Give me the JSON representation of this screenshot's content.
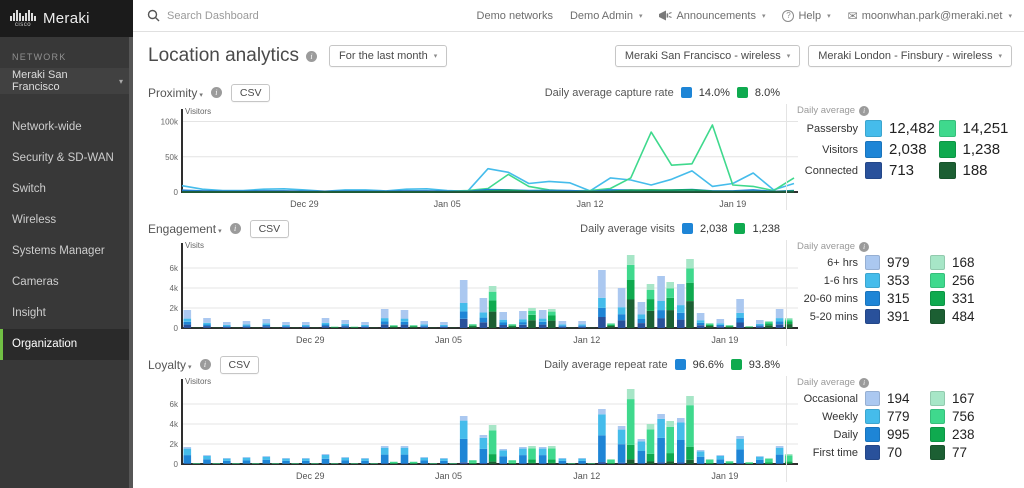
{
  "sidebar": {
    "brand": "cisco",
    "logo_text": "Meraki",
    "network_label": "NETWORK",
    "network_selector": "Meraki San Francisco",
    "items": [
      {
        "label": "Network-wide",
        "active": false
      },
      {
        "label": "Security & SD-WAN",
        "active": false
      },
      {
        "label": "Switch",
        "active": false
      },
      {
        "label": "Wireless",
        "active": false
      },
      {
        "label": "Systems Manager",
        "active": false
      },
      {
        "label": "Cameras",
        "active": false
      },
      {
        "label": "Insight",
        "active": false
      },
      {
        "label": "Organization",
        "active": true
      }
    ]
  },
  "topbar": {
    "search_placeholder": "Search Dashboard",
    "links": [
      "Demo networks",
      "Demo Admin",
      "Announcements",
      "Help",
      "moonwhan.park@meraki.net"
    ]
  },
  "header": {
    "title": "Location analytics",
    "time_filter": "For the last month",
    "network_a": "Meraki San Francisco - wireless",
    "network_b": "Meraki London - Finsbury - wireless"
  },
  "colors": {
    "blue_pale": "#ABC8F0",
    "blue_light": "#45BCEB",
    "blue_med": "#1E85D6",
    "blue_dark": "#29519B",
    "green_pale": "#A7E6C7",
    "green_light": "#3FD98D",
    "green_med": "#0FAA4F",
    "green_dark": "#1C5F33",
    "accent_green": "#71bf44"
  },
  "sections": {
    "proximity": {
      "title": "Proximity",
      "csv": "CSV",
      "legend_label": "Daily average capture rate",
      "legend_values": [
        "14.0%",
        "8.0%"
      ],
      "panel": {
        "title": "Daily average",
        "rows": [
          {
            "label": "Passersby",
            "sf": "12,482",
            "lon": "14,251",
            "sf_color": "blue_light",
            "lon_color": "green_light"
          },
          {
            "label": "Visitors",
            "sf": "2,038",
            "lon": "1,238",
            "sf_color": "blue_med",
            "lon_color": "green_med"
          },
          {
            "label": "Connected",
            "sf": "713",
            "lon": "188",
            "sf_color": "blue_dark",
            "lon_color": "green_dark"
          }
        ]
      }
    },
    "engagement": {
      "title": "Engagement",
      "csv": "CSV",
      "legend_label": "Daily average visits",
      "legend_values": [
        "2,038",
        "1,238"
      ],
      "panel": {
        "title": "Daily average",
        "rows": [
          {
            "label": "6+ hrs",
            "sf": "979",
            "lon": "168",
            "sf_color": "blue_pale",
            "lon_color": "green_pale"
          },
          {
            "label": "1-6 hrs",
            "sf": "353",
            "lon": "256",
            "sf_color": "blue_light",
            "lon_color": "green_light"
          },
          {
            "label": "20-60 mins",
            "sf": "315",
            "lon": "331",
            "sf_color": "blue_med",
            "lon_color": "green_med"
          },
          {
            "label": "5-20 mins",
            "sf": "391",
            "lon": "484",
            "sf_color": "blue_dark",
            "lon_color": "green_dark"
          }
        ]
      }
    },
    "loyalty": {
      "title": "Loyalty",
      "csv": "CSV",
      "legend_label": "Daily average repeat rate",
      "legend_values": [
        "96.6%",
        "93.8%"
      ],
      "panel": {
        "title": "Daily average",
        "rows": [
          {
            "label": "Occasional",
            "sf": "194",
            "lon": "167",
            "sf_color": "blue_pale",
            "lon_color": "green_pale"
          },
          {
            "label": "Weekly",
            "sf": "779",
            "lon": "756",
            "sf_color": "blue_light",
            "lon_color": "green_light"
          },
          {
            "label": "Daily",
            "sf": "995",
            "lon": "238",
            "sf_color": "blue_med",
            "lon_color": "green_med"
          },
          {
            "label": "First time",
            "sf": "70",
            "lon": "77",
            "sf_color": "blue_dark",
            "lon_color": "green_dark"
          }
        ]
      }
    }
  },
  "chart_data": [
    {
      "type": "line",
      "title": "Proximity",
      "ylabel": "Visitors",
      "n_days": 31,
      "ylim": [
        0,
        105000
      ],
      "grid": true,
      "yticks": [
        {
          "v": 0,
          "label": "0"
        },
        {
          "v": 50000,
          "label": "50k"
        },
        {
          "v": 100000,
          "label": "100k"
        }
      ],
      "xticks": [
        {
          "i": 6,
          "label": "Dec 29"
        },
        {
          "i": 13,
          "label": "Jan 05"
        },
        {
          "i": 20,
          "label": "Jan 12"
        },
        {
          "i": 27,
          "label": "Jan 19"
        }
      ],
      "series": [
        {
          "name": "SF passersby",
          "color": "blue_light",
          "values": [
            9000,
            4000,
            2000,
            2000,
            4000,
            4500,
            3000,
            1000,
            3000,
            3000,
            1500,
            4000,
            4500,
            2000,
            1000,
            33000,
            28000,
            12000,
            15000,
            13000,
            1500,
            20000,
            17000,
            10000,
            18000,
            30000,
            8000,
            12000,
            27000,
            3000,
            12000
          ]
        },
        {
          "name": "London passersby",
          "color": "green_light",
          "values": [
            800,
            800,
            800,
            800,
            800,
            800,
            800,
            800,
            800,
            800,
            800,
            800,
            800,
            1000,
            2000,
            5000,
            25000,
            8000,
            3000,
            1500,
            2000,
            5000,
            20000,
            85000,
            38000,
            40000,
            95000,
            10000,
            8000,
            2000,
            20000
          ]
        },
        {
          "name": "SF visitors",
          "color": "blue_med",
          "values": [
            2500,
            1500,
            1000,
            1000,
            1500,
            1500,
            1000,
            800,
            1000,
            1000,
            800,
            1500,
            1500,
            1000,
            800,
            3500,
            3000,
            2000,
            2200,
            2000,
            800,
            3000,
            2800,
            2000,
            2800,
            3500,
            1500,
            1500,
            3000,
            800,
            2000
          ]
        },
        {
          "name": "London visitors",
          "color": "green_med",
          "values": [
            300,
            300,
            300,
            300,
            300,
            300,
            300,
            300,
            300,
            300,
            300,
            300,
            300,
            400,
            600,
            1500,
            2500,
            1200,
            600,
            400,
            500,
            1000,
            2500,
            3000,
            2500,
            3000,
            1200,
            900,
            500,
            400,
            1500
          ]
        },
        {
          "name": "SF connected",
          "color": "blue_dark",
          "values": [
            700,
            700,
            700,
            700,
            700,
            700,
            700,
            700,
            700,
            700,
            700,
            700,
            700,
            700,
            700,
            700,
            700,
            700,
            700,
            700,
            700,
            700,
            700,
            700,
            700,
            700,
            700,
            700,
            700,
            700,
            700
          ]
        },
        {
          "name": "London connected",
          "color": "green_dark",
          "values": [
            200,
            200,
            200,
            200,
            200,
            200,
            200,
            200,
            200,
            200,
            200,
            200,
            200,
            200,
            200,
            200,
            200,
            200,
            200,
            200,
            200,
            200,
            200,
            200,
            200,
            200,
            200,
            200,
            200,
            200,
            200
          ]
        }
      ]
    },
    {
      "type": "stacked-bar",
      "title": "Engagement",
      "ylabel": "Visits",
      "n_days": 31,
      "ylim": [
        0,
        7600
      ],
      "grid": true,
      "yticks": [
        {
          "v": 0,
          "label": "0"
        },
        {
          "v": 2000,
          "label": "2k"
        },
        {
          "v": 4000,
          "label": "4k"
        },
        {
          "v": 6000,
          "label": "6k"
        }
      ],
      "xticks": [
        {
          "i": 6,
          "label": "Dec 29"
        },
        {
          "i": 13,
          "label": "Jan 05"
        },
        {
          "i": 20,
          "label": "Jan 12"
        },
        {
          "i": 27,
          "label": "Jan 19"
        }
      ],
      "segments_bottom_to_top": [
        "5-20 mins",
        "20-60 mins",
        "1-6 hrs",
        "6+ hrs"
      ],
      "groups": [
        {
          "name": "Meraki San Francisco - wireless",
          "colors": [
            "blue_dark",
            "blue_med",
            "blue_light",
            "blue_pale"
          ],
          "fractions": [
            0.19,
            0.155,
            0.175,
            0.48
          ],
          "totals": [
            1800,
            1000,
            600,
            700,
            900,
            600,
            600,
            1000,
            800,
            600,
            1900,
            1800,
            700,
            600,
            4800,
            3000,
            1600,
            1700,
            1800,
            700,
            700,
            5800,
            4000,
            2600,
            5200,
            4400,
            1500,
            900,
            2900,
            800,
            1900
          ]
        },
        {
          "name": "Meraki London - Finsbury - wireless",
          "colors": [
            "green_dark",
            "green_med",
            "green_light",
            "green_pale"
          ],
          "fractions": [
            0.39,
            0.267,
            0.207,
            0.136
          ],
          "totals": [
            100,
            100,
            100,
            100,
            100,
            100,
            100,
            150,
            150,
            100,
            300,
            300,
            100,
            100,
            400,
            4200,
            400,
            2000,
            1900,
            100,
            100,
            500,
            7300,
            4400,
            4600,
            6900,
            500,
            300,
            200,
            700,
            1000
          ]
        }
      ]
    },
    {
      "type": "stacked-bar",
      "title": "Loyalty",
      "ylabel": "Visitors",
      "n_days": 31,
      "ylim": [
        0,
        7600
      ],
      "grid": true,
      "yticks": [
        {
          "v": 0,
          "label": "0"
        },
        {
          "v": 2000,
          "label": "2k"
        },
        {
          "v": 4000,
          "label": "4k"
        },
        {
          "v": 6000,
          "label": "6k"
        }
      ],
      "xticks": [
        {
          "i": 6,
          "label": "Dec 29"
        },
        {
          "i": 13,
          "label": "Jan 05"
        },
        {
          "i": 20,
          "label": "Jan 12"
        },
        {
          "i": 27,
          "label": "Jan 19"
        }
      ],
      "segments_bottom_to_top": [
        "First time",
        "Daily",
        "Weekly",
        "Occasional"
      ],
      "groups": [
        {
          "name": "Meraki San Francisco - wireless",
          "colors": [
            "blue_dark",
            "blue_med",
            "blue_light",
            "blue_pale"
          ],
          "fractions": [
            0.034,
            0.488,
            0.382,
            0.096
          ],
          "totals": [
            1700,
            900,
            600,
            700,
            800,
            600,
            600,
            1000,
            700,
            600,
            1800,
            1800,
            700,
            600,
            4800,
            2900,
            1500,
            1700,
            1700,
            600,
            600,
            5500,
            3800,
            2500,
            5000,
            4600,
            1400,
            900,
            2800,
            800,
            1800
          ]
        },
        {
          "name": "Meraki London - Finsbury - wireless",
          "colors": [
            "green_dark",
            "green_med",
            "green_light",
            "green_pale"
          ],
          "fractions": [
            0.062,
            0.192,
            0.611,
            0.135
          ],
          "totals": [
            100,
            100,
            100,
            100,
            100,
            100,
            100,
            100,
            100,
            100,
            250,
            250,
            100,
            100,
            400,
            3900,
            400,
            1800,
            1800,
            100,
            100,
            500,
            7500,
            4000,
            4300,
            6800,
            500,
            300,
            200,
            600,
            1000
          ]
        }
      ]
    }
  ]
}
